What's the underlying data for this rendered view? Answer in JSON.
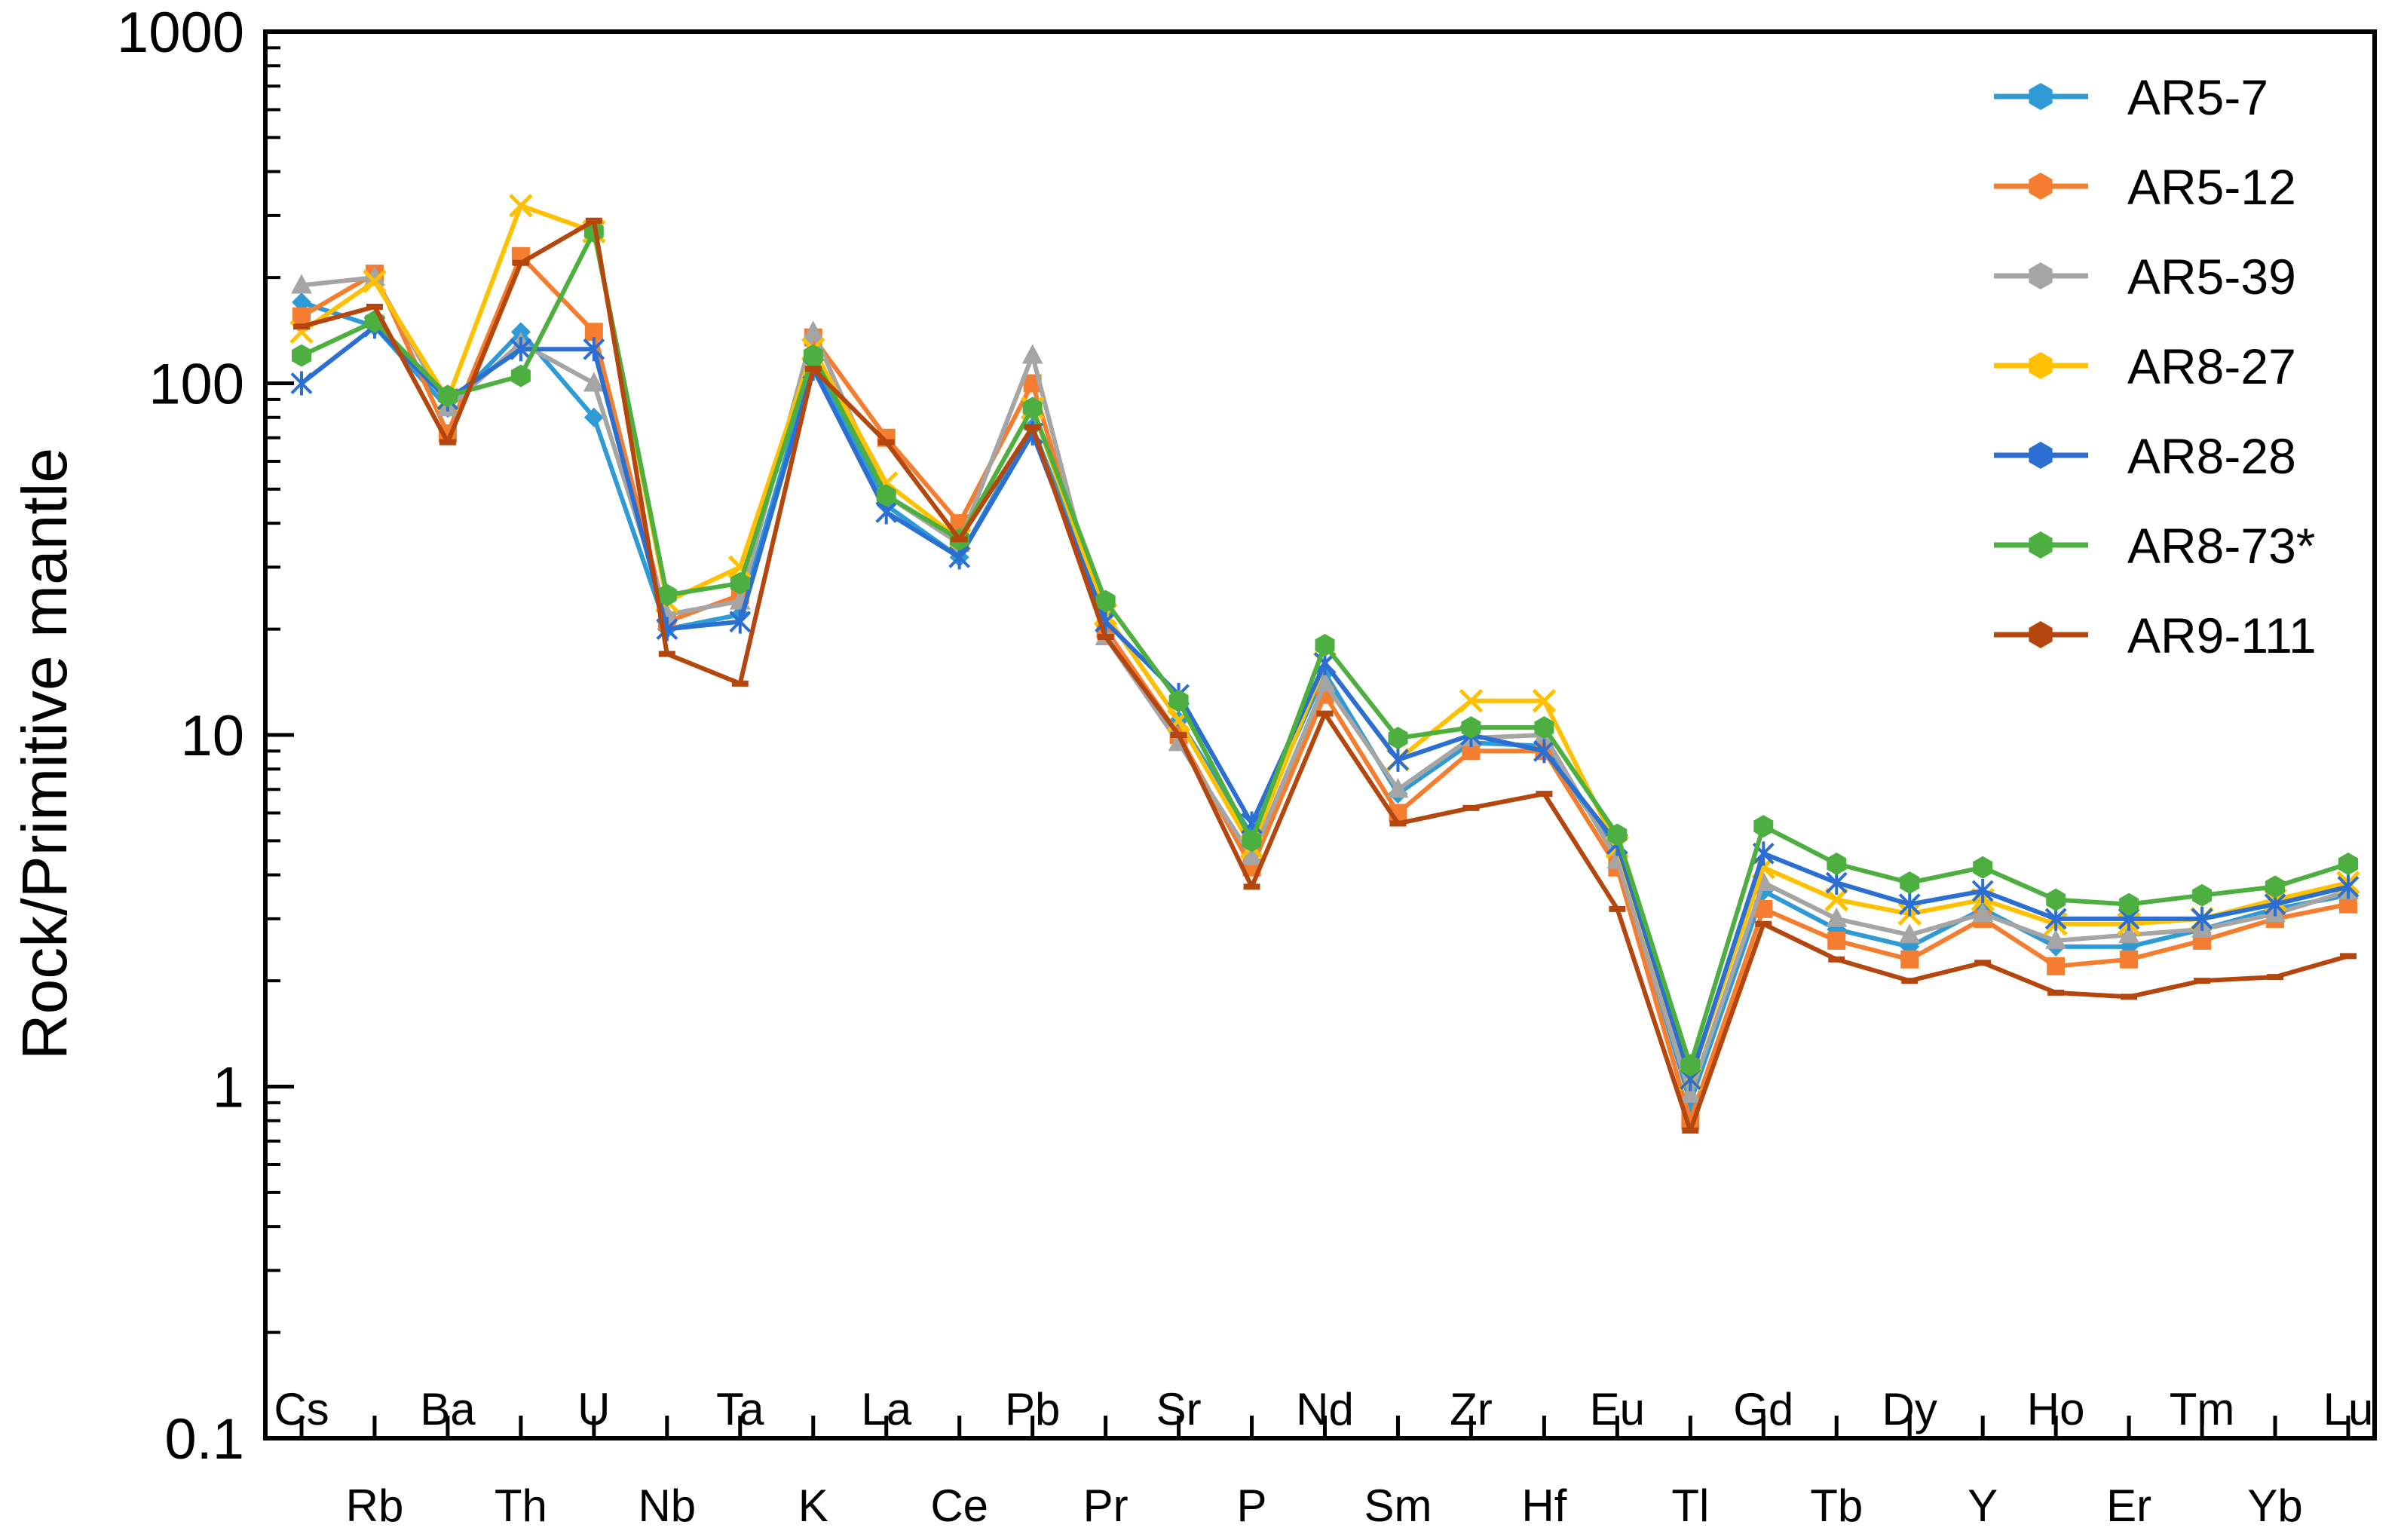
{
  "chart_data": {
    "type": "line",
    "title": "",
    "xlabel": "",
    "ylabel": "Rock/Primitive mantle",
    "yscale": "log",
    "ylim": [
      0.1,
      1000
    ],
    "yticks": [
      "0.1",
      "1",
      "10",
      "100",
      "1000"
    ],
    "categories": [
      "Cs",
      "Rb",
      "Ba",
      "Th",
      "U",
      "Nb",
      "Ta",
      "K",
      "La",
      "Ce",
      "Pb",
      "Pr",
      "Sr",
      "P",
      "Nd",
      "Sm",
      "Zr",
      "Hf",
      "Eu",
      "Tl",
      "Gd",
      "Tb",
      "Dy",
      "Y",
      "Ho",
      "Er",
      "Tm",
      "Yb",
      "Lu"
    ],
    "legend_position": "top-right",
    "series": [
      {
        "name": "AR5-7",
        "color": "#2e9bd6",
        "marker": "diamond",
        "values": [
          170,
          145,
          85,
          140,
          80,
          20,
          22,
          115,
          45,
          32,
          75,
          22,
          11,
          5.2,
          15,
          6.8,
          9.5,
          9.3,
          4.6,
          0.9,
          3.6,
          2.8,
          2.5,
          3.2,
          2.5,
          2.5,
          2.8,
          3.2,
          3.5
        ]
      },
      {
        "name": "AR5-12",
        "color": "#f47d30",
        "marker": "square",
        "values": [
          155,
          205,
          72,
          230,
          140,
          21,
          25,
          135,
          70,
          40,
          100,
          20,
          10,
          4.2,
          13,
          6,
          9,
          9,
          4.2,
          0.8,
          3.2,
          2.6,
          2.3,
          3,
          2.2,
          2.3,
          2.6,
          3,
          3.3
        ]
      },
      {
        "name": "AR5-39",
        "color": "#a5a5a5",
        "marker": "triangle",
        "values": [
          190,
          200,
          85,
          130,
          100,
          22,
          24,
          140,
          48,
          35,
          120,
          19,
          9.5,
          4.5,
          14,
          7,
          9.8,
          10,
          4.4,
          0.95,
          3.8,
          3,
          2.7,
          3.1,
          2.6,
          2.7,
          2.8,
          3.1,
          3.6
        ]
      },
      {
        "name": "AR8-27",
        "color": "#ffc000",
        "marker": "x",
        "values": [
          140,
          195,
          90,
          320,
          270,
          24,
          30,
          125,
          52,
          36,
          85,
          22,
          11,
          4.8,
          16,
          8.5,
          12.5,
          12.5,
          4.8,
          1.05,
          4.2,
          3.4,
          3.1,
          3.4,
          2.9,
          2.9,
          3,
          3.4,
          3.8
        ]
      },
      {
        "name": "AR8-28",
        "color": "#2a6fd1",
        "marker": "star",
        "values": [
          100,
          145,
          90,
          125,
          125,
          20,
          21,
          110,
          43,
          32,
          72,
          21,
          13,
          5.6,
          16,
          8.5,
          10,
          9,
          4.9,
          1.05,
          4.6,
          3.8,
          3.3,
          3.6,
          3,
          3,
          3,
          3.3,
          3.7
        ]
      },
      {
        "name": "AR8-73*",
        "color": "#4caf3f",
        "marker": "hexagon",
        "values": [
          120,
          150,
          92,
          105,
          270,
          25,
          27,
          120,
          48,
          36,
          85,
          24,
          12.5,
          5,
          18,
          9.8,
          10.5,
          10.5,
          5.2,
          1.15,
          5.5,
          4.3,
          3.8,
          4.2,
          3.4,
          3.3,
          3.5,
          3.7,
          4.3
        ]
      },
      {
        "name": "AR9-111",
        "color": "#b5460e",
        "marker": "dash",
        "values": [
          145,
          165,
          68,
          220,
          290,
          17,
          14,
          110,
          68,
          36,
          75,
          19,
          10,
          3.7,
          11.5,
          5.6,
          6.2,
          6.8,
          3.2,
          0.75,
          2.9,
          2.3,
          2,
          2.25,
          1.85,
          1.8,
          2,
          2.05,
          2.35
        ]
      }
    ]
  }
}
